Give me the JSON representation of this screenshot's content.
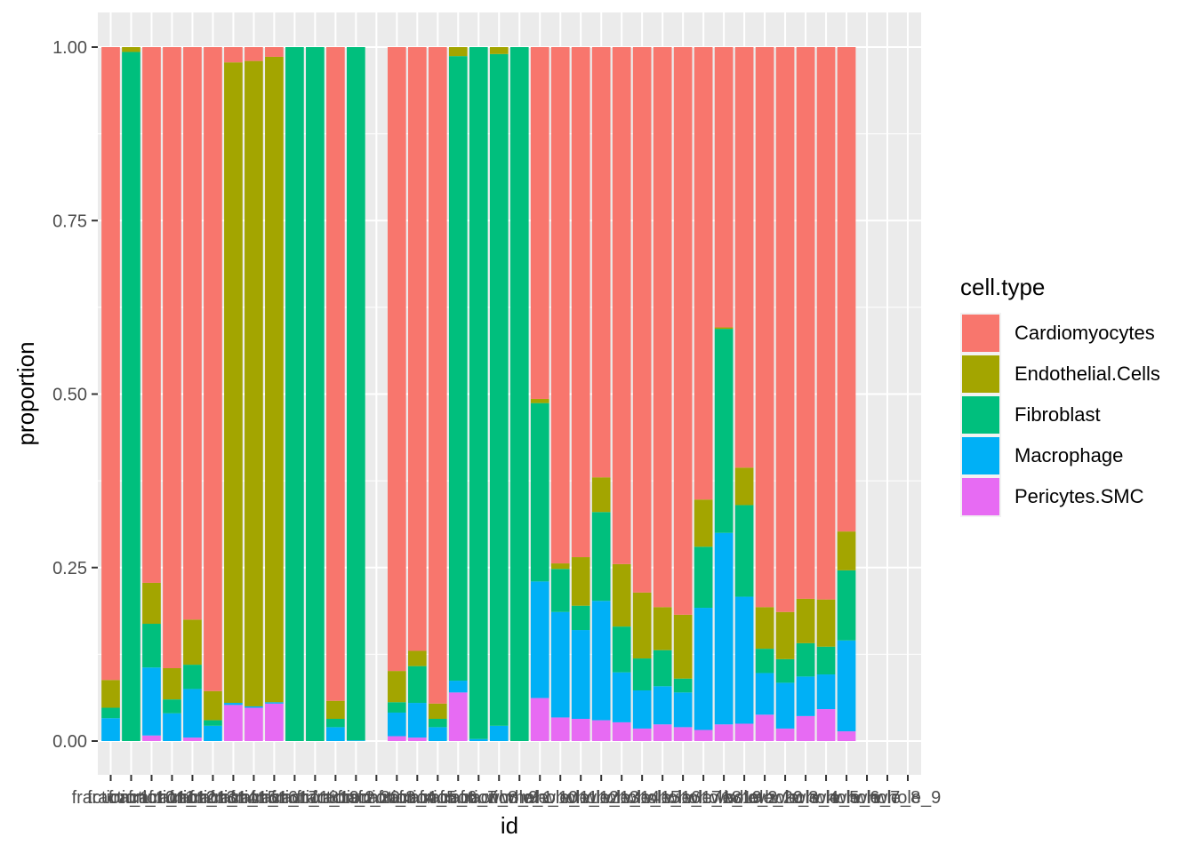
{
  "chart_data": {
    "type": "bar",
    "stacked": true,
    "xlabel": "id",
    "ylabel": "proportion",
    "ylim": [
      0,
      1
    ],
    "yticks": [
      "0.00",
      "0.25",
      "0.50",
      "0.75",
      "1.00"
    ],
    "ytick_values": [
      0,
      0.25,
      0.5,
      0.75,
      1.0
    ],
    "grid": true,
    "legend_title": "cell.type",
    "legend_position": "right",
    "categories": [
      "fraction_1",
      "fraction_10",
      "fraction_11",
      "fraction_12",
      "fraction_13",
      "fraction_14",
      "fraction_15",
      "fraction_16",
      "fraction_17",
      "fraction_18",
      "fraction_19",
      "fraction_2",
      "fraction_20",
      "fraction_3",
      "fraction_4",
      "fraction_5",
      "fraction_6",
      "fraction_7",
      "fraction_8",
      "fraction_9",
      "whole_1",
      "whole_10",
      "whole_11",
      "whole_12",
      "whole_13",
      "whole_14",
      "whole_15",
      "whole_16",
      "whole_17",
      "whole_18",
      "whole_19",
      "whole_2",
      "whole_20",
      "whole_3",
      "whole_4",
      "whole_5",
      "whole_6",
      "whole_7",
      "whole_8",
      "whole_9"
    ],
    "series": [
      {
        "name": "Pericytes.SMC",
        "color": "#E76BF3",
        "values": [
          0,
          0,
          0.008,
          0,
          0.005,
          0,
          0.052,
          0.048,
          0.054,
          0,
          0,
          0,
          0,
          0,
          0.007,
          0.005,
          0,
          0.07,
          0,
          0,
          0,
          0.062,
          0.034,
          0.032,
          0.03,
          0.027,
          0.018,
          0.024,
          0.02,
          0.016,
          0.024,
          0.025,
          0.038,
          0.018,
          0.036,
          0.046,
          0.014,
          0,
          0,
          0
        ]
      },
      {
        "name": "Macrophage",
        "color": "#00B0F6",
        "values": [
          0.033,
          0,
          0.098,
          0.04,
          0.07,
          0.022,
          0.003,
          0.002,
          0.002,
          0,
          0,
          0.02,
          0.001,
          0,
          0.034,
          0.05,
          0.02,
          0.017,
          0.003,
          0.022,
          0,
          0.168,
          0.152,
          0.128,
          0.172,
          0.072,
          0.055,
          0.055,
          0.05,
          0.176,
          0.276,
          0.183,
          0.06,
          0.066,
          0.057,
          0.05,
          0.131,
          0,
          0,
          0
        ]
      },
      {
        "name": "Fibroblast",
        "color": "#00BF7D",
        "values": [
          0.015,
          0.993,
          0.063,
          0.02,
          0.035,
          0.008,
          0,
          0,
          0,
          1.0,
          1.0,
          0.012,
          0.999,
          0,
          0.015,
          0.053,
          0.012,
          0.9,
          0.997,
          0.968,
          1.0,
          0.257,
          0.062,
          0.035,
          0.128,
          0.066,
          0.046,
          0.052,
          0.02,
          0.088,
          0.294,
          0.132,
          0.035,
          0.034,
          0.048,
          0.04,
          0.101,
          0,
          0,
          0
        ]
      },
      {
        "name": "Endothelial.Cells",
        "color": "#A3A500",
        "values": [
          0.04,
          0.007,
          0.059,
          0.045,
          0.065,
          0.042,
          0.923,
          0.93,
          0.93,
          0,
          0,
          0.026,
          0,
          0,
          0.045,
          0.022,
          0.022,
          0.013,
          0,
          0.01,
          0,
          0.006,
          0.008,
          0.07,
          0.05,
          0.09,
          0.095,
          0.062,
          0.092,
          0.068,
          0.002,
          0.054,
          0.06,
          0.068,
          0.064,
          0.068,
          0.056,
          0,
          0,
          0
        ]
      },
      {
        "name": "Cardiomyocytes",
        "color": "#F8766D",
        "values": [
          0.912,
          0,
          0.772,
          0.895,
          0.825,
          0.928,
          0.022,
          0.02,
          0.014,
          0,
          0,
          0.942,
          0,
          0,
          0.899,
          0.87,
          0.946,
          0,
          0,
          0,
          0,
          0.507,
          0.744,
          0.735,
          0.62,
          0.745,
          0.786,
          0.807,
          0.818,
          0.652,
          0.404,
          0.606,
          0.807,
          0.814,
          0.795,
          0.796,
          0.698,
          0,
          0,
          0
        ]
      }
    ]
  }
}
